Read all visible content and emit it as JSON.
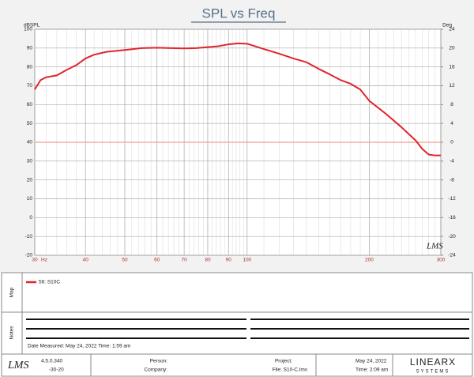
{
  "chart_data": {
    "type": "line",
    "title": "SPL vs Freq",
    "y_label": "dBSPL",
    "y2_label": "Deg",
    "x_unit": "Hz",
    "xscale": "log",
    "x": [
      30,
      31,
      32,
      34,
      36,
      38,
      40,
      42,
      45,
      50,
      55,
      60,
      65,
      70,
      75,
      80,
      85,
      90,
      95,
      100,
      110,
      120,
      130,
      140,
      150,
      160,
      170,
      180,
      190,
      200,
      220,
      240,
      260,
      270,
      280,
      290,
      300
    ],
    "series": [
      {
        "name": "56: S10C",
        "color": "#e0242c",
        "values": [
          68,
          73,
          74.5,
          75.5,
          78.5,
          81,
          84.5,
          86.5,
          88,
          89,
          90,
          90.2,
          90,
          89.8,
          90,
          90.5,
          91,
          92,
          92.5,
          92.3,
          89.5,
          87,
          84.5,
          82.5,
          79,
          76,
          73,
          71,
          68,
          62,
          55,
          48,
          41,
          36.5,
          33.5,
          33,
          33
        ]
      }
    ],
    "xlim": [
      30,
      300
    ],
    "xticks": [
      30,
      40,
      50,
      60,
      70,
      80,
      90,
      100,
      200,
      300
    ],
    "ylim": [
      -20,
      100
    ],
    "yticks": [
      -20,
      -10,
      0,
      10,
      20,
      30,
      40,
      50,
      60,
      70,
      80,
      90,
      100
    ],
    "y2lim": [
      -24,
      24
    ],
    "y2ticks": [
      -24,
      -20,
      -16,
      -12,
      -8,
      -4,
      0,
      4,
      8,
      12,
      16,
      20,
      24
    ],
    "grid": true,
    "reference_line_color": "#f0a090"
  },
  "map_panel": {
    "label": "Map"
  },
  "notes_panel": {
    "label": "Notes",
    "date_line": "Date Measured: May 24, 2022  Time: 1:59 am"
  },
  "footer": {
    "logo": "LMS",
    "version": "4.5.0.340",
    "version_date": "-30-20",
    "person": "Person:",
    "company": "Company:",
    "project": "Project:",
    "file": "File: S10-C.lms",
    "date": "May 24, 2022",
    "time": "Time: 2:09 am",
    "brand": "LINEARX",
    "brand_sub": "SYSTEMS"
  }
}
